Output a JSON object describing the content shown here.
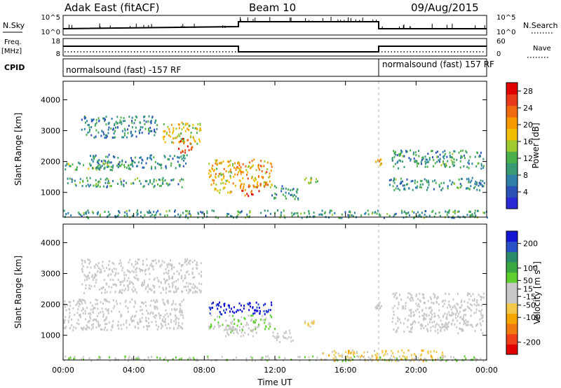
{
  "header": {
    "station": "Adak East (fitACF)",
    "beam": "Beam 10",
    "date": "09/Aug/2015"
  },
  "top_strip": {
    "nsky_label": "N.Sky",
    "nsky_ticks": [
      "10^5",
      "10^0"
    ],
    "nsearch_label": "N.Search",
    "nsearch_ticks": [
      "10^5",
      "10^0"
    ],
    "freq_label": "Freq.",
    "freq_unit": "[MHz]",
    "freq_ticks": [
      "18",
      "8"
    ],
    "nave_label": "Nave",
    "nave_ticks": [
      "60",
      "0"
    ],
    "cpid_label": "CPID",
    "cpid_left": "normalsound (fast) -157 RF",
    "cpid_right": "normalsound (fast) 157 RF"
  },
  "colors": {
    "power_scale": [
      "#2a2ad6",
      "#2c52b8",
      "#2f7fa8",
      "#3a9a73",
      "#4bb04b",
      "#9ec92f",
      "#f0c000",
      "#f59b00",
      "#f06a10",
      "#e83a1a",
      "#e00000"
    ],
    "velocity_scale": [
      "#e00000",
      "#f0401a",
      "#f07a10",
      "#f5a500",
      "#f2c94a",
      "#c8c8c8",
      "#c8c8c8",
      "#5fcf2f",
      "#3aa840",
      "#2d8a6a",
      "#2a52c8",
      "#1414d2"
    ]
  },
  "chart_data": [
    {
      "type": "heatmap",
      "name": "Power panel",
      "x_ticks": [
        "00:00",
        "04:00",
        "08:00",
        "12:00",
        "16:00",
        "20:00",
        "00:00"
      ],
      "xlim": [
        0,
        24
      ],
      "ylim": [
        200,
        4600
      ],
      "y_ticks": [
        1000,
        2000,
        3000,
        4000
      ],
      "ylabel": "Slant Range [km]",
      "colorbar": {
        "label": "Power [dB]",
        "ticks": [
          4,
          8,
          12,
          16,
          20,
          24,
          28
        ],
        "range": [
          0,
          30
        ]
      },
      "regions": [
        {
          "t": [
            1.0,
            5.3
          ],
          "r": [
            2800,
            3500
          ],
          "v": 8
        },
        {
          "t": [
            5.6,
            7.8
          ],
          "r": [
            2600,
            3300
          ],
          "v": 17
        },
        {
          "t": [
            6.5,
            7.3
          ],
          "r": [
            2300,
            2800
          ],
          "v": 25
        },
        {
          "t": [
            0.0,
            4.0
          ],
          "r": [
            1750,
            2000
          ],
          "v": 12
        },
        {
          "t": [
            1.5,
            7.0
          ],
          "r": [
            1800,
            2250
          ],
          "v": 8
        },
        {
          "t": [
            0.2,
            6.8
          ],
          "r": [
            1200,
            1500
          ],
          "v": 10
        },
        {
          "t": [
            8.2,
            9.7
          ],
          "r": [
            1000,
            2100
          ],
          "v": 18
        },
        {
          "t": [
            9.7,
            11.8
          ],
          "r": [
            1200,
            2100
          ],
          "v": 20
        },
        {
          "t": [
            10.0,
            11.2
          ],
          "r": [
            900,
            1300
          ],
          "v": 24
        },
        {
          "t": [
            11.8,
            13.3
          ],
          "r": [
            800,
            1250
          ],
          "v": 8
        },
        {
          "t": [
            13.6,
            14.4
          ],
          "r": [
            1300,
            1500
          ],
          "v": 15
        },
        {
          "t": [
            17.6,
            18.0
          ],
          "r": [
            1900,
            2100
          ],
          "v": 18
        },
        {
          "t": [
            18.6,
            23.8
          ],
          "r": [
            1800,
            2400
          ],
          "v": 9
        },
        {
          "t": [
            18.4,
            23.9
          ],
          "r": [
            1100,
            1500
          ],
          "v": 9
        },
        {
          "t": [
            0.0,
            24.0
          ],
          "r": [
            200,
            450
          ],
          "v": 10
        }
      ]
    },
    {
      "type": "heatmap",
      "name": "Velocity panel",
      "x_ticks": [
        "00:00",
        "04:00",
        "08:00",
        "12:00",
        "16:00",
        "20:00",
        "00:00"
      ],
      "xlim": [
        0,
        24
      ],
      "ylim": [
        200,
        4600
      ],
      "y_ticks": [
        1000,
        2000,
        3000,
        4000
      ],
      "ylabel": "Slant Range [km]",
      "xlabel": "Time UT",
      "colorbar": {
        "label": "Velocity [m s^-1]",
        "ticks": [
          -200,
          -100,
          -50,
          -15,
          15,
          50,
          100,
          200
        ],
        "range": [
          -250,
          250
        ]
      },
      "regions": [
        {
          "t": [
            1.0,
            7.8
          ],
          "r": [
            2400,
            3500
          ],
          "v": 0
        },
        {
          "t": [
            0.0,
            6.8
          ],
          "r": [
            1200,
            2200
          ],
          "v": 0
        },
        {
          "t": [
            8.2,
            11.8
          ],
          "r": [
            1700,
            2100
          ],
          "v": 220
        },
        {
          "t": [
            8.2,
            12.0
          ],
          "r": [
            1200,
            1700
          ],
          "v": 40
        },
        {
          "t": [
            9.0,
            11.0
          ],
          "r": [
            1000,
            1300
          ],
          "v": 20
        },
        {
          "t": [
            11.8,
            13.0
          ],
          "r": [
            800,
            1200
          ],
          "v": 0
        },
        {
          "t": [
            13.6,
            14.2
          ],
          "r": [
            1300,
            1500
          ],
          "v": -40
        },
        {
          "t": [
            17.6,
            18.0
          ],
          "r": [
            1900,
            2100
          ],
          "v": 0
        },
        {
          "t": [
            18.6,
            23.8
          ],
          "r": [
            1100,
            2400
          ],
          "v": 0
        },
        {
          "t": [
            14.5,
            21.5
          ],
          "r": [
            200,
            550
          ],
          "v": -60
        },
        {
          "t": [
            0.0,
            24.0
          ],
          "r": [
            200,
            350
          ],
          "v": 30
        }
      ]
    }
  ]
}
